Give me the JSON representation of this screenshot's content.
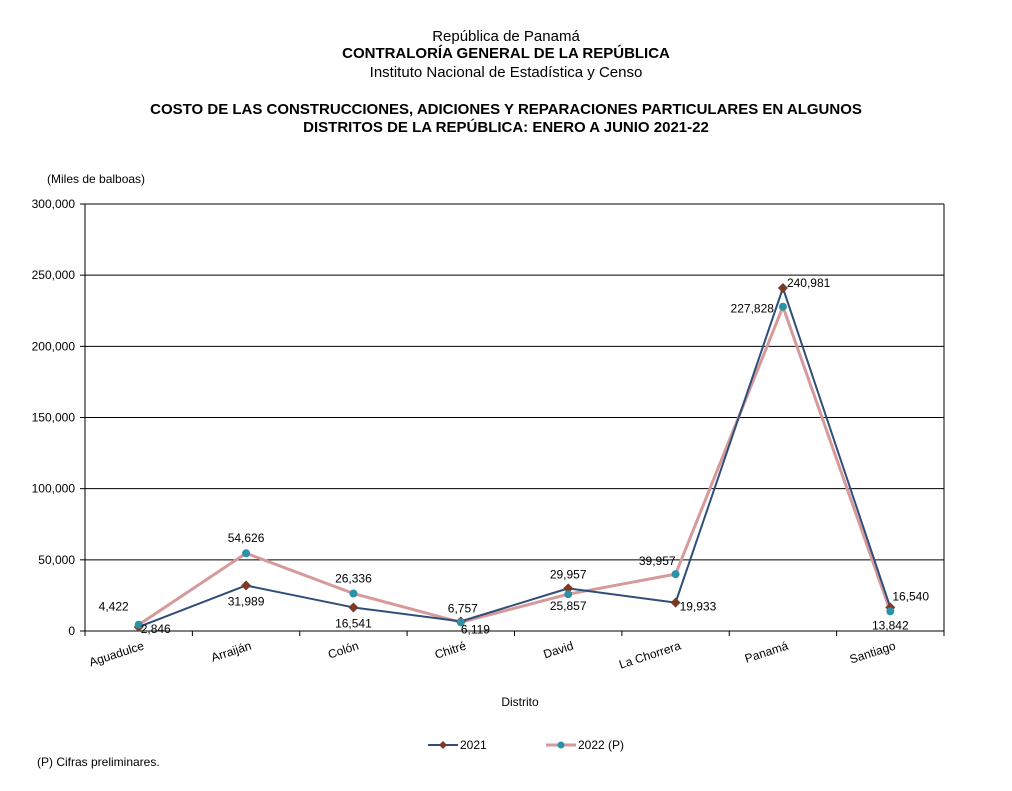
{
  "header": {
    "line1": "República de Panamá",
    "line2": "CONTRALORÍA GENERAL DE LA REPÚBLICA",
    "line3": "Instituto  Nacional de Estadística y Censo"
  },
  "chart_data": {
    "type": "line",
    "title": "COSTO DE LAS CONSTRUCCIONES, ADICIONES Y REPARACIONES PARTICULARES EN ALGUNOS DISTRITOS DE LA REPÚBLICA: ENERO A JUNIO 2021-22",
    "title_line1": "COSTO DE LAS CONSTRUCCIONES, ADICIONES Y REPARACIONES PARTICULARES EN ALGUNOS",
    "title_line2": "DISTRITOS DE LA REPÚBLICA: ENERO A JUNIO 2021-22",
    "ylabel": "(Miles de balboas)",
    "xlabel": "Distrito",
    "categories": [
      "Aguadulce",
      "Arraiján",
      "Colón",
      "Chitré",
      "David",
      "La Chorrera",
      "Panamá",
      "Santiago"
    ],
    "ylim": [
      0,
      300000
    ],
    "yticks": [
      0,
      50000,
      100000,
      150000,
      200000,
      250000,
      300000
    ],
    "ytick_labels": [
      "0",
      "50,000",
      "100,000",
      "150,000",
      "200,000",
      "250,000",
      "300,000"
    ],
    "grid": true,
    "legend_position": "bottom",
    "series": [
      {
        "name": "2021",
        "color": "#2f4e7a",
        "marker_color": "#7b3a24",
        "marker": "diamond",
        "values": [
          2846,
          31989,
          16541,
          6757,
          29957,
          19933,
          240981,
          16540
        ],
        "labels": [
          "2,846",
          "31,989",
          "16,541",
          "6,757",
          "29,957",
          "19,933",
          "240,981",
          "16,540"
        ]
      },
      {
        "name": "2022 (P)",
        "color": "#d79a9a",
        "marker_color": "#2b93a8",
        "marker": "circle",
        "values": [
          4422,
          54626,
          26336,
          6119,
          25857,
          39957,
          227828,
          13842
        ],
        "labels": [
          "4,422",
          "54,626",
          "26,336",
          "6,119",
          "25,857",
          "39,957",
          "227,828",
          "13,842"
        ]
      }
    ]
  },
  "footnote": "(P) Cifras  preliminares."
}
